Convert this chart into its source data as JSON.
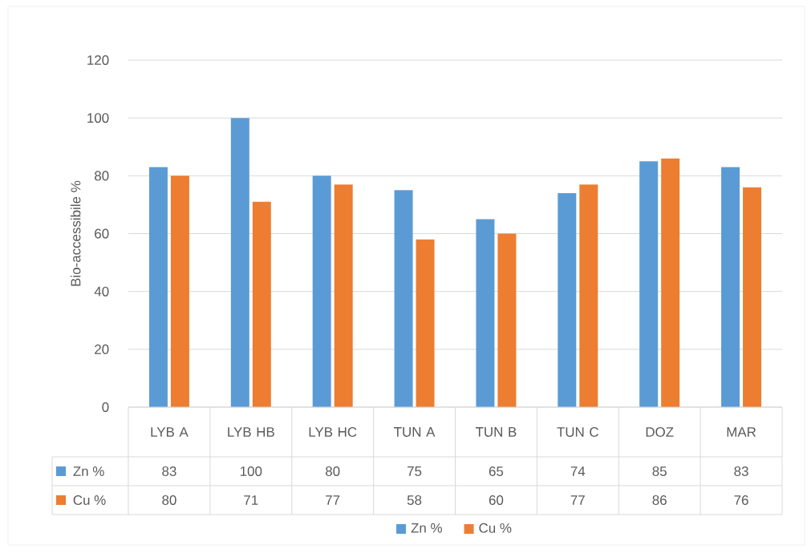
{
  "chart_data": {
    "type": "bar",
    "ylabel": "Bio-accessibile %",
    "categories": [
      "LYB A",
      "LYB HB",
      "LYB HC",
      "TUN A",
      "TUN B",
      "TUN C",
      "DOZ",
      "MAR"
    ],
    "series": [
      {
        "name": "Zn %",
        "color": "#5b9bd5",
        "values": [
          83,
          100,
          80,
          75,
          65,
          74,
          85,
          83
        ]
      },
      {
        "name": "Cu %",
        "color": "#ed7d31",
        "values": [
          80,
          71,
          77,
          58,
          60,
          77,
          86,
          76
        ]
      }
    ],
    "ylim": [
      0,
      120
    ],
    "yticks": [
      0,
      20,
      40,
      60,
      80,
      100,
      120
    ],
    "grid": "y",
    "legend": "bottom",
    "data_labels": true
  }
}
